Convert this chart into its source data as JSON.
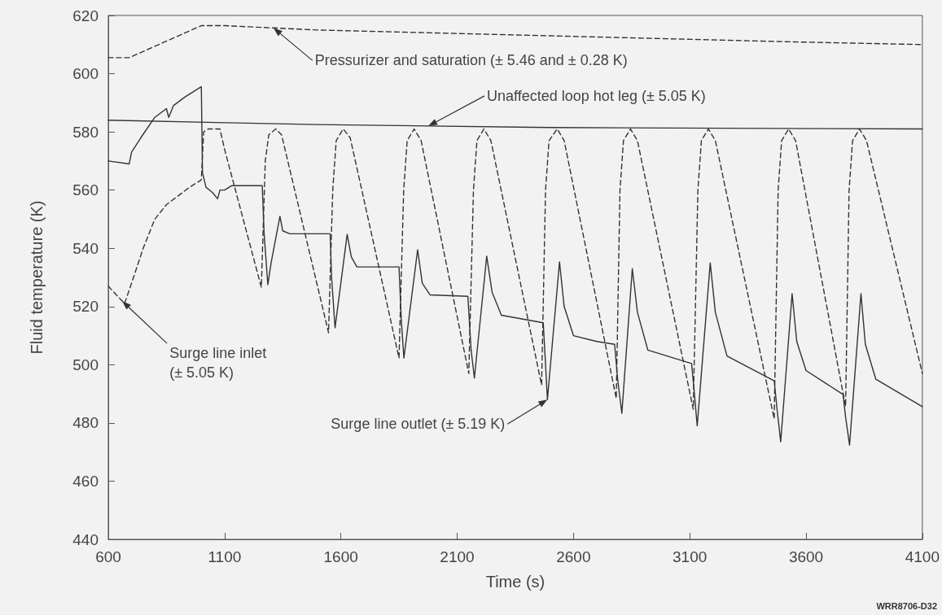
{
  "chart_data": {
    "type": "line",
    "xlabel": "Time (s)",
    "ylabel": "Fluid temperature (K)",
    "xlim": [
      600,
      4100
    ],
    "xticks": [
      600,
      1100,
      1600,
      2100,
      2600,
      3100,
      3600,
      4100
    ],
    "ylim": [
      440,
      620
    ],
    "yticks": [
      440,
      460,
      480,
      500,
      520,
      540,
      560,
      580,
      600,
      620
    ],
    "grid": false,
    "marker": "none",
    "series": [
      {
        "name": "Pressurizer and saturation (± 5.46 and ± 0.28 K)",
        "color": "#333333",
        "line_style": "dashed",
        "x": [
          600,
          690,
          1000,
          1100,
          1500,
          2000,
          2500,
          3000,
          3500,
          4100
        ],
        "values": [
          605.5,
          605.5,
          616.5,
          616.5,
          615,
          614,
          613,
          612,
          611,
          610
        ]
      },
      {
        "name": "Unaffected loop hot leg (± 5.05 K)",
        "color": "#333333",
        "line_style": "solid",
        "x": [
          600,
          1500,
          2500,
          4100
        ],
        "values": [
          584,
          582.5,
          581.5,
          581
        ]
      },
      {
        "name": "Surge line inlet\n(± 5.05 K)",
        "color": "#333333",
        "line_style": "dashed",
        "x": [
          600,
          670,
          700,
          750,
          800,
          850,
          900,
          950,
          1000,
          1010,
          1030,
          1080,
          1100,
          1258,
          1275,
          1290,
          1320,
          1345,
          1547,
          1565,
          1580,
          1610,
          1640,
          1850,
          1870,
          1885,
          1915,
          1945,
          2150,
          2170,
          2185,
          2215,
          2245,
          2463,
          2480,
          2495,
          2530,
          2560,
          2784,
          2800,
          2815,
          2845,
          2875,
          3115,
          3135,
          3150,
          3180,
          3210,
          3463,
          3480,
          3495,
          3525,
          3555,
          3770,
          3785,
          3800,
          3830,
          3860,
          4100
        ],
        "values": [
          527,
          521,
          528,
          540,
          550,
          555,
          558,
          561,
          563.5,
          580,
          581,
          581,
          574,
          526.6,
          570,
          579,
          581,
          579,
          511,
          560,
          577,
          581,
          578,
          502.3,
          560,
          577,
          581,
          577,
          497,
          560,
          577,
          581,
          577,
          493,
          560,
          577,
          581,
          577,
          488.4,
          560,
          577,
          581,
          577,
          484.7,
          560,
          577,
          581,
          577,
          481.4,
          560,
          577,
          581,
          577,
          485.6,
          560,
          577,
          581,
          577,
          497
        ]
      },
      {
        "name": "Surge line outlet (± 5.19 K)",
        "color": "#333333",
        "line_style": "solid",
        "x": [
          600,
          690,
          700,
          740,
          800,
          850,
          860,
          880,
          930,
          990,
          1000,
          1005,
          1020,
          1050,
          1070,
          1080,
          1100,
          1130,
          1262,
          1270,
          1286,
          1300,
          1338,
          1350,
          1380,
          1554,
          1560,
          1575,
          1627,
          1645,
          1669,
          1850,
          1860,
          1871,
          1930,
          1950,
          1983,
          2146,
          2160,
          2174,
          2227,
          2250,
          2290,
          2470,
          2480,
          2488,
          2540,
          2560,
          2600,
          2700,
          2777,
          2790,
          2808,
          2853,
          2875,
          2920,
          3108,
          3120,
          3132,
          3188,
          3210,
          3260,
          3463,
          3475,
          3491,
          3540,
          3560,
          3600,
          3759,
          3770,
          3787,
          3836,
          3855,
          3900,
          4100
        ],
        "values": [
          570,
          569,
          573,
          578,
          585,
          588,
          585,
          589,
          592,
          595,
          595.5,
          566,
          561,
          559,
          557,
          560,
          560,
          561.5,
          561.5,
          545,
          527.5,
          535,
          551,
          546,
          545,
          545,
          530,
          512.7,
          544.8,
          537,
          533.6,
          533.6,
          515,
          502.3,
          539.5,
          528,
          524,
          523.5,
          505,
          495.4,
          537.3,
          525,
          517,
          514.4,
          500,
          488,
          535.3,
          520,
          510,
          508,
          507,
          495,
          483.3,
          533,
          518,
          505,
          500.4,
          490,
          479,
          535,
          518,
          503,
          494.5,
          485,
          473.5,
          524.4,
          508,
          498,
          489.8,
          482,
          472.4,
          524.4,
          507,
          495,
          485.6
        ]
      }
    ],
    "annotations": [
      "WRR8706-D32"
    ]
  }
}
